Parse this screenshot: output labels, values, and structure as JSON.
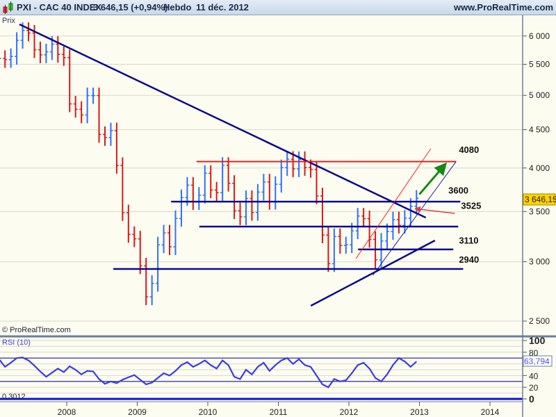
{
  "header": {
    "symbol": "PXI - CAC 40 INDEX",
    "price_change": "3 646,15 (+0,94%)",
    "period": "Hebdo",
    "date": "11 déc. 2012",
    "website": "www.ProRealTime.com"
  },
  "colors": {
    "up_bar": "#2f6fff",
    "down_bar": "#d81818",
    "trendline": "#0a0a8c",
    "resistance": "#e02020",
    "background": "#fcfcf0",
    "rsi_line": "#3a3ae8",
    "arrow_up": "#138a13",
    "last_price_bg": "#ffd200"
  },
  "chart_data": [
    {
      "type": "bar",
      "panel_label": "Prix",
      "copyright": "© ProRealTime.com",
      "yscale": "log",
      "ylim": [
        2400,
        6400
      ],
      "y_ticks": [
        {
          "v": 6000,
          "label": "6 000"
        },
        {
          "v": 5500,
          "label": "5 500"
        },
        {
          "v": 5000,
          "label": "5 000"
        },
        {
          "v": 4500,
          "label": "4 500"
        },
        {
          "v": 4000,
          "label": "4 000"
        },
        {
          "v": 3500,
          "label": "3 500"
        },
        {
          "v": 3000,
          "label": "3 000"
        },
        {
          "v": 2500,
          "label": "2 500"
        }
      ],
      "x_ticks": [
        "2008",
        "2009",
        "2010",
        "2011",
        "2012",
        "2013",
        "2014"
      ],
      "grid": true,
      "last_price": "3 646,15",
      "start": "2007-01",
      "closes": [
        5600,
        5580,
        5634,
        5920,
        6104,
        6054,
        5751,
        5662,
        5715,
        5850,
        5670,
        5614,
        4870,
        4790,
        4707,
        4996,
        4996,
        4434,
        4392,
        4485,
        4032,
        3487,
        3262,
        3218,
        2962,
        2693,
        2807,
        3159,
        3277,
        3140,
        3426,
        3653,
        3795,
        3607,
        3680,
        3936,
        3739,
        3708,
        4034,
        3817,
        3508,
        3443,
        3643,
        3490,
        3715,
        3833,
        3610,
        3805,
        4005,
        4110,
        3989,
        4107,
        4006,
        3982,
        3672,
        3256,
        2982,
        3242,
        3154,
        3160,
        3298,
        3452,
        3424,
        3213,
        3017,
        3197,
        3291,
        3413,
        3355,
        3429,
        3557,
        3646
      ],
      "annotations": [
        {
          "type": "line",
          "name": "long-downtrend",
          "from": [
            "2007.33",
            6218
          ],
          "to": [
            "2013.09",
            3435
          ],
          "color": "#0a0a8c",
          "width": 2.5
        },
        {
          "type": "line",
          "name": "resistance-4080",
          "from": [
            "2009.84",
            4080
          ],
          "to": [
            "2013.52",
            4080
          ],
          "color": "#e02020",
          "width": 2
        },
        {
          "type": "line",
          "name": "level-3600",
          "from": [
            "2009.48",
            3608
          ],
          "to": [
            "2013.58",
            3608
          ],
          "color": "#0a0a8c",
          "width": 2.5
        },
        {
          "type": "line",
          "name": "level-3340",
          "from": [
            "2009.88",
            3342
          ],
          "to": [
            "2013.55",
            3342
          ],
          "color": "#0a0a8c",
          "width": 2.5
        },
        {
          "type": "line",
          "name": "level-3110",
          "from": [
            "2012.13",
            3115
          ],
          "to": [
            "2013.48",
            3115
          ],
          "color": "#0a0a8c",
          "width": 2.5
        },
        {
          "type": "line",
          "name": "level-2940",
          "from": [
            "2008.66",
            2934
          ],
          "to": [
            "2013.62",
            2934
          ],
          "color": "#0a0a8c",
          "width": 2.5
        },
        {
          "type": "line",
          "name": "rising-support",
          "from": [
            "2011.46",
            2620
          ],
          "to": [
            "2013.22",
            3202
          ],
          "color": "#0a0a8c",
          "width": 2.5
        },
        {
          "type": "line",
          "name": "channel-lower",
          "from": [
            "2012.34",
            2878
          ],
          "to": [
            "2013.52",
            4080
          ],
          "color": "#1a1aa0",
          "width": 1
        },
        {
          "type": "line",
          "name": "channel-upper",
          "from": [
            "2012.10",
            3029
          ],
          "to": [
            "2013.16",
            4244
          ],
          "color": "#ff2020",
          "width": 1
        },
        {
          "type": "arrow",
          "name": "red-arrow",
          "from": [
            "2013.50",
            3480
          ],
          "to": [
            "2012.94",
            3530
          ],
          "color": "#e04040"
        },
        {
          "type": "arrow",
          "name": "green-arrow",
          "from": [
            "2013.00",
            3690
          ],
          "to": [
            "2013.37",
            4050
          ],
          "color": "#138a13"
        }
      ],
      "level_labels": [
        {
          "text": "4080",
          "t": "2013.56",
          "p": 4190
        },
        {
          "text": "3600",
          "t": "2013.41",
          "p": 3700
        },
        {
          "text": "3525",
          "t": "2013.59",
          "p": 3530
        },
        {
          "text": "3110",
          "t": "2013.56",
          "p": 3170
        },
        {
          "text": "2940",
          "t": "2013.56",
          "p": 2990
        }
      ]
    },
    {
      "type": "line",
      "panel_label": "RSI (10)",
      "ylim": [
        0,
        100
      ],
      "y_ticks": [
        {
          "v": 100,
          "label": "100"
        },
        {
          "v": 80,
          "label": "80"
        },
        {
          "v": 40,
          "label": "40"
        },
        {
          "v": 20,
          "label": "20"
        },
        {
          "v": 0,
          "label": "0"
        }
      ],
      "levels": [
        70,
        30
      ],
      "min_label": "0,3012",
      "last_value": "63,794",
      "start": "2007-01",
      "values": [
        68,
        55,
        62,
        70,
        71,
        66,
        57,
        47,
        38,
        45,
        52,
        46,
        56,
        50,
        42,
        48,
        47,
        34,
        26,
        30,
        27,
        33,
        37,
        41,
        33,
        25,
        28,
        36,
        44,
        40,
        48,
        58,
        63,
        55,
        60,
        66,
        58,
        52,
        66,
        58,
        38,
        34,
        50,
        42,
        55,
        62,
        48,
        58,
        66,
        70,
        60,
        68,
        58,
        55,
        40,
        25,
        20,
        34,
        30,
        32,
        44,
        58,
        62,
        52,
        36,
        30,
        42,
        58,
        70,
        64,
        55,
        64
      ]
    }
  ]
}
